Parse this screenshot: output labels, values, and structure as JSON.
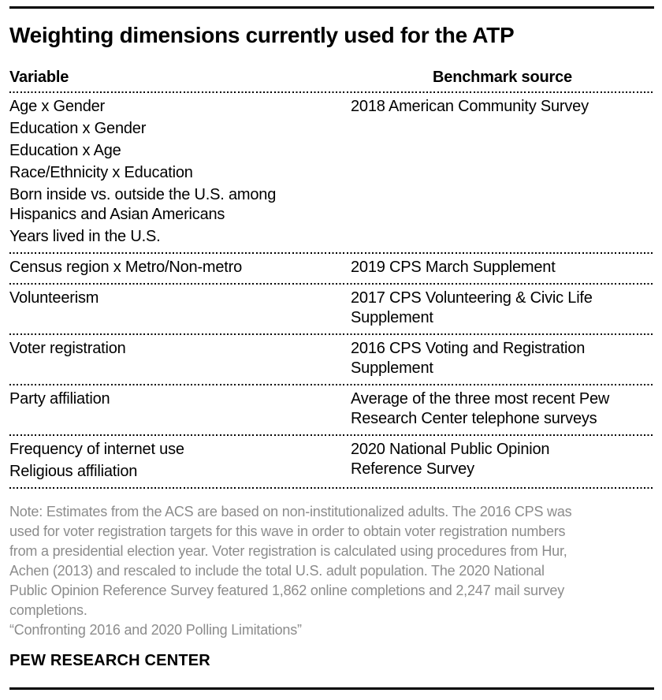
{
  "figure": {
    "source_label": "PEW RESEARCH CENTER"
  },
  "chart_data": {
    "type": "table",
    "title": "Weighting dimensions currently used for the ATP",
    "columns": [
      "Variable",
      "Benchmark source"
    ],
    "rows": [
      {
        "variables": [
          "Age x Gender",
          "Education x Gender",
          "Education x Age",
          "Race/Ethnicity x Education",
          "Born inside vs. outside the U.S. among\nHispanics and Asian Americans",
          "Years lived in the U.S."
        ],
        "benchmark": "2018 American Community Survey"
      },
      {
        "variables": [
          "Census region x Metro/Non-metro"
        ],
        "benchmark": "2019 CPS March Supplement"
      },
      {
        "variables": [
          "Volunteerism"
        ],
        "benchmark": "2017 CPS Volunteering & Civic Life\nSupplement"
      },
      {
        "variables": [
          "Voter registration"
        ],
        "benchmark": "2016 CPS Voting and Registration\nSupplement"
      },
      {
        "variables": [
          "Party affiliation"
        ],
        "benchmark": "Average of the three most recent Pew\nResearch Center telephone surveys"
      },
      {
        "variables": [
          "Frequency of internet use",
          "Religious affiliation"
        ],
        "benchmark": "2020 National Public Opinion\nReference Survey"
      }
    ],
    "note": "Note: Estimates from the ACS are based on non-institutionalized adults. The 2016 CPS was\nused for voter registration targets for this wave in order to obtain voter registration numbers\nfrom a presidential election year. Voter registration is calculated using procedures from Hur,\nAchen (2013) and rescaled to include the total U.S. adult population. The 2020 National\nPublic Opinion Reference Survey featured 1,862 online completions and 2,247 mail survey\ncompletions.",
    "citation": "“Confronting 2016 and 2020 Polling Limitations”",
    "layout": {
      "grid": "off",
      "header_row": true,
      "benchmark_column_align": "left",
      "benchmark_header_align": "center"
    }
  },
  "colors": {
    "text": "#000000",
    "note_gray": "#8c8c8c",
    "rule": "#000000",
    "background": "#ffffff"
  }
}
